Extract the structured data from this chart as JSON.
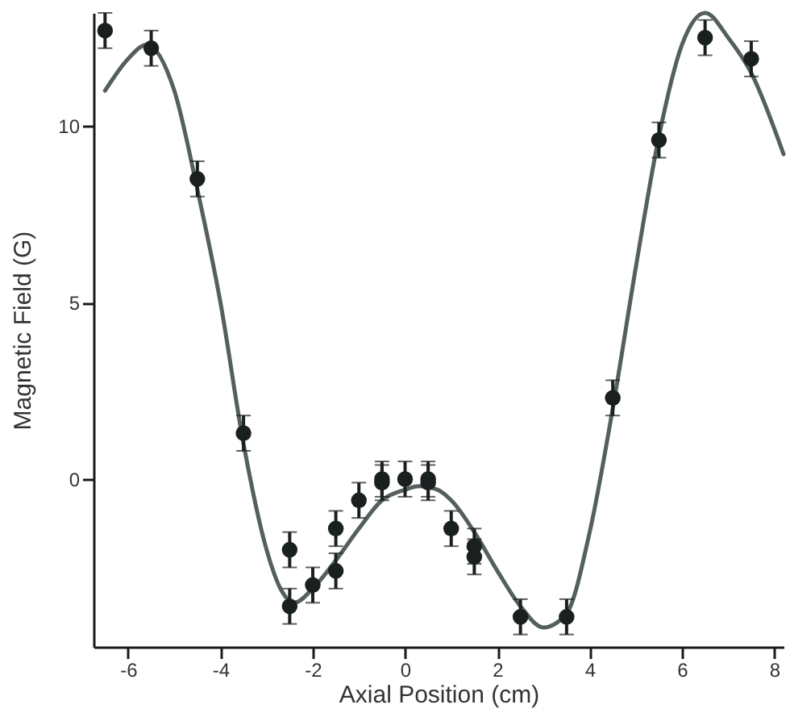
{
  "chart_data": {
    "type": "scatter",
    "xlabel": "Axial Position (cm)",
    "ylabel": "Magnetic Field (G)",
    "xlim": [
      -6.75,
      8.2
    ],
    "xticks": [
      -6,
      -4,
      -2,
      0,
      2,
      4,
      6,
      8
    ],
    "ylim": [
      -4.75,
      13.2
    ],
    "yticks": [
      0,
      5,
      10
    ],
    "grid": false,
    "marker": "circle",
    "series": [
      {
        "color": "#1a2020",
        "x": [
          -6.5,
          -5.5,
          -4.5,
          -3.5,
          -2.5,
          -2.5,
          -2,
          -1.5,
          -1.5,
          -1,
          -0.5,
          -0.5,
          0,
          0.5,
          0.5,
          1,
          1.5,
          1.5,
          2.5,
          3.5,
          4.5,
          5.5,
          6.5,
          7.5
        ],
        "values": [
          12.7,
          12.2,
          8.5,
          1.3,
          -2.0,
          -3.6,
          -3.0,
          -1.4,
          -2.6,
          -0.6,
          0.0,
          -0.1,
          0.0,
          0.0,
          -0.1,
          -1.4,
          -1.9,
          -2.2,
          -3.9,
          -3.9,
          2.3,
          9.6,
          12.5,
          11.9
        ],
        "errors": [
          0.5,
          0.5,
          0.5,
          0.5,
          0.5,
          0.5,
          0.5,
          0.5,
          0.5,
          0.5,
          0.5,
          0.5,
          0.5,
          0.5,
          0.5,
          0.5,
          0.5,
          0.5,
          0.5,
          0.5,
          0.5,
          0.5,
          0.5,
          0.5
        ]
      },
      {
        "type": "line",
        "color": "#555f5f",
        "marker": "none",
        "line_style": "solid",
        "x": [
          -6.5,
          -6.0,
          -5.6,
          -5.0,
          -4.5,
          -4.0,
          -3.5,
          -3.0,
          -2.7,
          -2.4,
          -2.0,
          -1.5,
          -1.0,
          -0.5,
          0.0,
          0.3,
          0.7,
          1.0,
          1.5,
          2.0,
          2.5,
          3.0,
          3.5,
          4.0,
          4.5,
          5.0,
          5.5,
          6.0,
          6.5,
          7.0,
          7.5,
          8.2
        ],
        "values": [
          11.0,
          11.9,
          12.3,
          11.0,
          8.2,
          5.0,
          1.0,
          -2.0,
          -3.1,
          -3.5,
          -3.1,
          -2.3,
          -1.4,
          -0.6,
          -0.3,
          -0.2,
          -0.3,
          -0.6,
          -1.5,
          -2.6,
          -3.6,
          -4.2,
          -3.8,
          -1.5,
          2.0,
          6.0,
          9.7,
          12.3,
          13.2,
          12.5,
          11.5,
          9.2
        ]
      }
    ]
  }
}
